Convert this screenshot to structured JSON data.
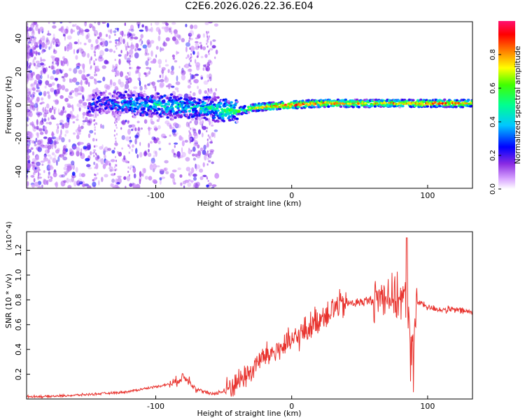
{
  "title": "C2E6.2026.026.22.36.E04",
  "chart_data": [
    {
      "type": "heatmap",
      "name": "spectrogram",
      "xlabel": "Height of straight line (km)",
      "ylabel": "Frequency (Hz)",
      "xlim": [
        -195,
        133
      ],
      "ylim": [
        -50,
        50
      ],
      "xticks": [
        -100,
        0,
        100
      ],
      "yticks": [
        -40,
        -20,
        0,
        20,
        40
      ],
      "colorbar": {
        "label": "Normalized spectral amplitude",
        "range": [
          0,
          1
        ],
        "ticks": [
          0.0,
          0.2,
          0.4,
          0.6,
          0.8
        ],
        "tick_labels": [
          "0.0",
          "0.2",
          "0.4",
          "0.6",
          "0.8"
        ]
      },
      "ridge": {
        "height_km": [
          -150,
          -140,
          -120,
          -100,
          -80,
          -70,
          -60,
          -50,
          -40,
          -30,
          -20,
          0,
          20,
          60,
          85,
          100,
          133
        ],
        "frequency_hz": [
          0,
          1,
          1,
          0,
          -1,
          -2,
          -2,
          -3,
          -4,
          -2,
          -1,
          0,
          1,
          1,
          1,
          1,
          1
        ],
        "amplitude": [
          0.2,
          0.25,
          0.35,
          0.45,
          0.45,
          0.4,
          0.45,
          0.55,
          0.6,
          0.7,
          0.8,
          0.95,
          0.85,
          0.8,
          0.85,
          0.9,
          0.8
        ]
      }
    },
    {
      "type": "line",
      "name": "snr",
      "xlabel": "Height of straight line (km)",
      "ylabel": "SNR (10 * v/v)",
      "y_multiplier": "(x10^4)",
      "xlim": [
        -195,
        133
      ],
      "ylim": [
        0,
        1.35
      ],
      "xticks": [
        -100,
        0,
        100
      ],
      "yticks": [
        0.2,
        0.4,
        0.6,
        0.8,
        1.0,
        1.2
      ],
      "ytick_labels": [
        "0.2",
        "0.4",
        "0.6",
        "0.8",
        "1.0",
        "1.2"
      ],
      "color": "#e8322d",
      "series": [
        {
          "name": "SNR",
          "x": [
            -195,
            -180,
            -160,
            -145,
            -130,
            -120,
            -110,
            -100,
            -90,
            -85,
            -80,
            -75,
            -70,
            -60,
            -50,
            -45,
            -40,
            -30,
            -25,
            -20,
            -10,
            0,
            10,
            20,
            30,
            40,
            50,
            60,
            65,
            70,
            75,
            80,
            85,
            88,
            90,
            92,
            95,
            100,
            110,
            120,
            133
          ],
          "y": [
            0.02,
            0.02,
            0.03,
            0.04,
            0.05,
            0.06,
            0.08,
            0.1,
            0.12,
            0.14,
            0.18,
            0.15,
            0.08,
            0.04,
            0.06,
            0.1,
            0.14,
            0.22,
            0.3,
            0.34,
            0.4,
            0.46,
            0.55,
            0.65,
            0.73,
            0.77,
            0.78,
            0.8,
            0.82,
            0.86,
            0.8,
            0.82,
            0.78,
            0.45,
            0.5,
            0.77,
            0.78,
            0.74,
            0.72,
            0.72,
            0.7
          ]
        }
      ]
    }
  ]
}
